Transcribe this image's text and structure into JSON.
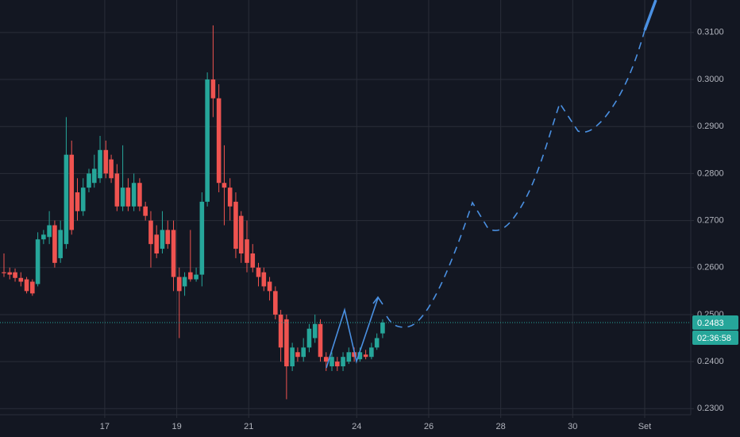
{
  "chart_data": {
    "type": "candlestick",
    "x": [
      14.2,
      14.36,
      14.51,
      14.67,
      14.83,
      14.99,
      15.14,
      15.3,
      15.46,
      15.61,
      15.77,
      15.93,
      16.08,
      16.24,
      16.4,
      16.56,
      16.71,
      16.87,
      17.03,
      17.18,
      17.34,
      17.5,
      17.65,
      17.81,
      17.97,
      18.13,
      18.28,
      18.44,
      18.6,
      18.75,
      18.91,
      19.07,
      19.22,
      19.38,
      19.54,
      19.7,
      19.85,
      20.01,
      20.17,
      20.32,
      20.48,
      20.64,
      20.79,
      20.95,
      21.11,
      21.27,
      21.42,
      21.58,
      21.74,
      21.89,
      22.05,
      22.21,
      22.36,
      22.52,
      22.68,
      22.84,
      22.99,
      23.15,
      23.31,
      23.46,
      23.62,
      23.78,
      23.93,
      24.09,
      24.25,
      24.41,
      24.56,
      24.72
    ],
    "open": [
      0.259,
      0.259,
      0.259,
      0.2578,
      0.2575,
      0.257,
      0.2565,
      0.266,
      0.2665,
      0.269,
      0.262,
      0.265,
      0.284,
      0.276,
      0.272,
      0.277,
      0.278,
      0.279,
      0.285,
      0.283,
      0.28,
      0.273,
      0.277,
      0.273,
      0.278,
      0.273,
      0.27,
      0.267,
      0.264,
      0.268,
      0.268,
      0.258,
      0.256,
      0.259,
      0.2575,
      0.2585,
      0.274,
      0.3,
      0.296,
      0.278,
      0.277,
      0.274,
      0.271,
      0.266,
      0.263,
      0.26,
      0.259,
      0.257,
      0.255,
      0.25,
      0.249,
      0.239,
      0.242,
      0.241,
      0.243,
      0.245,
      0.248,
      0.241,
      0.239,
      0.24,
      0.239,
      0.24,
      0.242,
      0.2405,
      0.2415,
      0.241,
      0.243,
      0.246
    ],
    "high": [
      0.263,
      0.26,
      0.2598,
      0.259,
      0.258,
      0.2575,
      0.2675,
      0.268,
      0.272,
      0.27,
      0.27,
      0.292,
      0.287,
      0.279,
      0.279,
      0.281,
      0.284,
      0.288,
      0.287,
      0.284,
      0.282,
      0.286,
      0.279,
      0.28,
      0.279,
      0.274,
      0.272,
      0.269,
      0.272,
      0.27,
      0.27,
      0.26,
      0.259,
      0.268,
      0.26,
      0.276,
      0.3015,
      0.3115,
      0.299,
      0.286,
      0.279,
      0.276,
      0.272,
      0.27,
      0.265,
      0.261,
      0.26,
      0.258,
      0.256,
      0.251,
      0.25,
      0.244,
      0.243,
      0.245,
      0.248,
      0.25,
      0.249,
      0.242,
      0.242,
      0.241,
      0.242,
      0.243,
      0.243,
      0.243,
      0.2425,
      0.244,
      0.246,
      0.249
    ],
    "low": [
      0.258,
      0.2575,
      0.257,
      0.256,
      0.2545,
      0.254,
      0.256,
      0.265,
      0.265,
      0.26,
      0.261,
      0.264,
      0.267,
      0.27,
      0.271,
      0.276,
      0.277,
      0.278,
      0.279,
      0.278,
      0.272,
      0.272,
      0.272,
      0.272,
      0.272,
      0.27,
      0.26,
      0.262,
      0.263,
      0.264,
      0.255,
      0.245,
      0.254,
      0.257,
      0.257,
      0.256,
      0.273,
      0.292,
      0.276,
      0.269,
      0.27,
      0.262,
      0.261,
      0.259,
      0.259,
      0.256,
      0.255,
      0.253,
      0.249,
      0.24,
      0.232,
      0.238,
      0.24,
      0.24,
      0.242,
      0.244,
      0.24,
      0.238,
      0.238,
      0.238,
      0.238,
      0.2395,
      0.24,
      0.24,
      0.2405,
      0.2405,
      0.2425,
      0.245
    ],
    "close": [
      0.2588,
      0.2585,
      0.2578,
      0.257,
      0.255,
      0.2545,
      0.266,
      0.267,
      0.269,
      0.261,
      0.268,
      0.284,
      0.268,
      0.272,
      0.277,
      0.28,
      0.281,
      0.285,
      0.28,
      0.279,
      0.273,
      0.277,
      0.273,
      0.278,
      0.273,
      0.271,
      0.265,
      0.263,
      0.268,
      0.265,
      0.258,
      0.255,
      0.258,
      0.2575,
      0.2585,
      0.274,
      0.3,
      0.296,
      0.278,
      0.277,
      0.273,
      0.264,
      0.263,
      0.261,
      0.26,
      0.258,
      0.256,
      0.255,
      0.25,
      0.243,
      0.239,
      0.243,
      0.241,
      0.243,
      0.247,
      0.248,
      0.241,
      0.24,
      0.241,
      0.239,
      0.241,
      0.242,
      0.241,
      0.242,
      0.241,
      0.243,
      0.245,
      0.2483
    ],
    "up_color": "#26a69a",
    "down_color": "#ef5350",
    "xlim": [
      14.09,
      33.28
    ],
    "xticks": [
      17,
      19,
      21,
      24,
      26,
      28,
      30,
      {
        "value": 32,
        "label": "Set"
      }
    ],
    "ylim": [
      0.2287,
      0.3169
    ],
    "yticks": [
      {
        "value": 0.23,
        "label": "0.2300"
      },
      {
        "value": 0.24,
        "label": "0.2400"
      },
      {
        "value": 0.25,
        "label": "0.2500"
      },
      {
        "value": 0.26,
        "label": "0.2600"
      },
      {
        "value": 0.27,
        "label": "0.2700"
      },
      {
        "value": 0.28,
        "label": "0.2800"
      },
      {
        "value": 0.29,
        "label": "0.2900"
      },
      {
        "value": 0.3,
        "label": "0.3000"
      },
      {
        "value": 0.31,
        "label": "0.3100"
      }
    ],
    "grid": true,
    "last_price": 0.2483,
    "countdown": "02:36:58"
  }
}
